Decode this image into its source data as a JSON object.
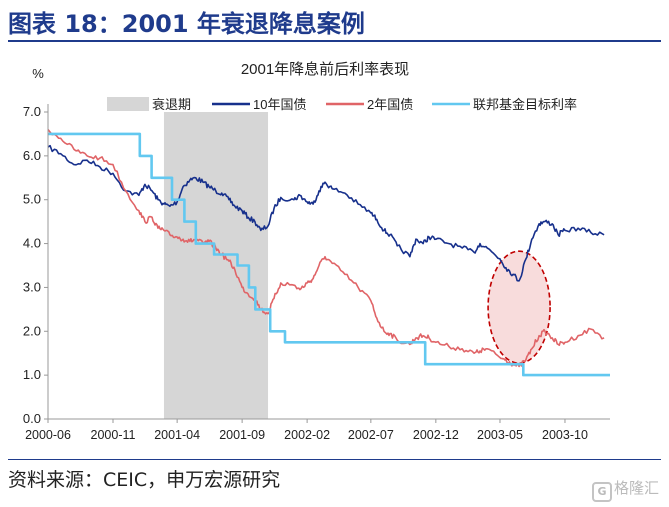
{
  "figure_title": "图表 18：2001 年衰退降息案例",
  "source_note": "资料来源：CEIC，申万宏源研究",
  "watermark": "格隆汇",
  "chart_data": {
    "type": "line",
    "title": "2001年降息前后利率表现",
    "ylabel": "%",
    "xlabel": "",
    "ylim": [
      0,
      7
    ],
    "y_ticks": [
      "0.0",
      "1.0",
      "2.0",
      "3.0",
      "4.0",
      "5.0",
      "6.0",
      "7.0"
    ],
    "x_tick_labels": [
      "2000-06",
      "2000-11",
      "2001-04",
      "2001-09",
      "2002-02",
      "2002-07",
      "2002-12",
      "2003-05",
      "2003-10"
    ],
    "x_tick_dates": [
      "2000-06-01",
      "2000-11-01",
      "2001-04-01",
      "2001-09-01",
      "2002-02-01",
      "2002-07-01",
      "2002-12-01",
      "2003-05-01",
      "2003-10-01"
    ],
    "x_range": [
      "2000-06-01",
      "2004-01-15"
    ],
    "grid": false,
    "legend_position": "top",
    "recession": {
      "name": "衰退期",
      "start": "2001-03-01",
      "end": "2001-11-01",
      "color": "#d6d6d6"
    },
    "highlight": {
      "shape": "dashed-ellipse",
      "center_date": "2003-06-15",
      "center_value": 2.55,
      "color": "#c00000",
      "fill": "#f8dcdc"
    },
    "series": [
      {
        "name": "10年国债",
        "color": "#17308c",
        "points": [
          [
            "2000-06-01",
            6.2
          ],
          [
            "2000-07-01",
            6.05
          ],
          [
            "2000-08-01",
            5.8
          ],
          [
            "2000-09-01",
            5.9
          ],
          [
            "2000-10-01",
            5.75
          ],
          [
            "2000-11-01",
            5.6
          ],
          [
            "2000-12-01",
            5.2
          ],
          [
            "2001-01-01",
            5.1
          ],
          [
            "2001-01-15",
            5.35
          ],
          [
            "2001-02-01",
            5.2
          ],
          [
            "2001-02-15",
            5.0
          ],
          [
            "2001-03-01",
            4.9
          ],
          [
            "2001-03-15",
            4.85
          ],
          [
            "2001-04-01",
            4.95
          ],
          [
            "2001-04-15",
            5.3
          ],
          [
            "2001-05-01",
            5.45
          ],
          [
            "2001-05-15",
            5.5
          ],
          [
            "2001-06-01",
            5.4
          ],
          [
            "2001-06-15",
            5.3
          ],
          [
            "2001-07-01",
            5.2
          ],
          [
            "2001-07-15",
            5.15
          ],
          [
            "2001-08-01",
            5.0
          ],
          [
            "2001-08-15",
            4.85
          ],
          [
            "2001-09-01",
            4.75
          ],
          [
            "2001-09-15",
            4.6
          ],
          [
            "2001-10-01",
            4.5
          ],
          [
            "2001-10-15",
            4.3
          ],
          [
            "2001-11-01",
            4.4
          ],
          [
            "2001-11-15",
            4.8
          ],
          [
            "2001-12-01",
            5.05
          ],
          [
            "2002-01-01",
            5.0
          ],
          [
            "2002-01-15",
            5.1
          ],
          [
            "2002-02-01",
            4.95
          ],
          [
            "2002-02-15",
            4.9
          ],
          [
            "2002-03-01",
            5.2
          ],
          [
            "2002-03-15",
            5.4
          ],
          [
            "2002-04-01",
            5.25
          ],
          [
            "2002-05-01",
            5.15
          ],
          [
            "2002-06-01",
            4.9
          ],
          [
            "2002-07-01",
            4.7
          ],
          [
            "2002-07-15",
            4.55
          ],
          [
            "2002-08-01",
            4.3
          ],
          [
            "2002-08-15",
            4.2
          ],
          [
            "2002-09-01",
            3.95
          ],
          [
            "2002-10-01",
            3.7
          ],
          [
            "2002-10-15",
            4.1
          ],
          [
            "2002-11-01",
            4.0
          ],
          [
            "2002-11-15",
            4.15
          ],
          [
            "2002-12-01",
            4.1
          ],
          [
            "2003-01-01",
            4.0
          ],
          [
            "2003-02-01",
            3.9
          ],
          [
            "2003-03-01",
            3.8
          ],
          [
            "2003-03-15",
            4.0
          ],
          [
            "2003-04-01",
            3.9
          ],
          [
            "2003-05-01",
            3.65
          ],
          [
            "2003-05-15",
            3.45
          ],
          [
            "2003-06-01",
            3.3
          ],
          [
            "2003-06-15",
            3.15
          ],
          [
            "2003-07-01",
            3.65
          ],
          [
            "2003-07-15",
            4.1
          ],
          [
            "2003-08-01",
            4.45
          ],
          [
            "2003-08-15",
            4.5
          ],
          [
            "2003-09-01",
            4.45
          ],
          [
            "2003-09-15",
            4.2
          ],
          [
            "2003-10-01",
            4.3
          ],
          [
            "2003-11-01",
            4.35
          ],
          [
            "2003-12-01",
            4.25
          ],
          [
            "2004-01-01",
            4.2
          ]
        ]
      },
      {
        "name": "2年国债",
        "color": "#e06467",
        "points": [
          [
            "2000-06-01",
            6.6
          ],
          [
            "2000-07-01",
            6.4
          ],
          [
            "2000-08-01",
            6.15
          ],
          [
            "2000-09-01",
            6.0
          ],
          [
            "2000-10-01",
            5.95
          ],
          [
            "2000-11-01",
            5.8
          ],
          [
            "2000-12-01",
            5.2
          ],
          [
            "2001-01-01",
            4.75
          ],
          [
            "2001-01-15",
            4.5
          ],
          [
            "2001-02-01",
            4.6
          ],
          [
            "2001-02-15",
            4.35
          ],
          [
            "2001-03-01",
            4.3
          ],
          [
            "2001-03-15",
            4.2
          ],
          [
            "2001-04-01",
            4.15
          ],
          [
            "2001-04-15",
            4.1
          ],
          [
            "2001-05-01",
            4.05
          ],
          [
            "2001-05-15",
            4.1
          ],
          [
            "2001-06-01",
            4.0
          ],
          [
            "2001-06-15",
            4.05
          ],
          [
            "2001-07-01",
            3.9
          ],
          [
            "2001-07-15",
            3.75
          ],
          [
            "2001-08-01",
            3.6
          ],
          [
            "2001-08-15",
            3.4
          ],
          [
            "2001-09-01",
            3.0
          ],
          [
            "2001-09-15",
            2.85
          ],
          [
            "2001-10-01",
            2.75
          ],
          [
            "2001-10-15",
            2.5
          ],
          [
            "2001-11-01",
            2.4
          ],
          [
            "2001-11-15",
            2.75
          ],
          [
            "2001-12-01",
            3.1
          ],
          [
            "2002-01-01",
            3.05
          ],
          [
            "2002-01-15",
            2.95
          ],
          [
            "2002-02-01",
            3.1
          ],
          [
            "2002-02-15",
            3.2
          ],
          [
            "2002-03-01",
            3.5
          ],
          [
            "2002-03-15",
            3.7
          ],
          [
            "2002-04-01",
            3.55
          ],
          [
            "2002-05-01",
            3.3
          ],
          [
            "2002-06-01",
            3.0
          ],
          [
            "2002-07-01",
            2.7
          ],
          [
            "2002-07-15",
            2.3
          ],
          [
            "2002-08-01",
            2.0
          ],
          [
            "2002-08-15",
            1.95
          ],
          [
            "2002-09-01",
            1.8
          ],
          [
            "2002-10-01",
            1.7
          ],
          [
            "2002-10-15",
            1.85
          ],
          [
            "2002-11-01",
            1.9
          ],
          [
            "2002-11-15",
            1.85
          ],
          [
            "2002-12-01",
            1.75
          ],
          [
            "2003-01-01",
            1.65
          ],
          [
            "2003-02-01",
            1.6
          ],
          [
            "2003-03-01",
            1.5
          ],
          [
            "2003-03-15",
            1.55
          ],
          [
            "2003-04-01",
            1.6
          ],
          [
            "2003-05-01",
            1.4
          ],
          [
            "2003-05-15",
            1.35
          ],
          [
            "2003-06-01",
            1.25
          ],
          [
            "2003-06-15",
            1.2
          ],
          [
            "2003-07-01",
            1.35
          ],
          [
            "2003-07-15",
            1.6
          ],
          [
            "2003-08-01",
            1.9
          ],
          [
            "2003-08-15",
            2.0
          ],
          [
            "2003-09-01",
            1.85
          ],
          [
            "2003-09-15",
            1.7
          ],
          [
            "2003-10-01",
            1.75
          ],
          [
            "2003-11-01",
            1.9
          ],
          [
            "2003-12-01",
            2.05
          ],
          [
            "2004-01-01",
            1.85
          ]
        ]
      },
      {
        "name": "联邦基金目标利率",
        "color": "#62c8f0",
        "step": true,
        "points": [
          [
            "2000-06-01",
            6.5
          ],
          [
            "2001-01-03",
            6.0
          ],
          [
            "2001-01-31",
            5.5
          ],
          [
            "2001-03-20",
            5.0
          ],
          [
            "2001-04-18",
            4.5
          ],
          [
            "2001-05-15",
            4.0
          ],
          [
            "2001-06-27",
            3.75
          ],
          [
            "2001-08-21",
            3.5
          ],
          [
            "2001-09-17",
            3.0
          ],
          [
            "2001-10-02",
            2.5
          ],
          [
            "2001-11-06",
            2.0
          ],
          [
            "2001-12-11",
            1.75
          ],
          [
            "2002-11-06",
            1.25
          ],
          [
            "2003-06-25",
            1.0
          ],
          [
            "2004-01-01",
            1.0
          ]
        ]
      }
    ]
  }
}
